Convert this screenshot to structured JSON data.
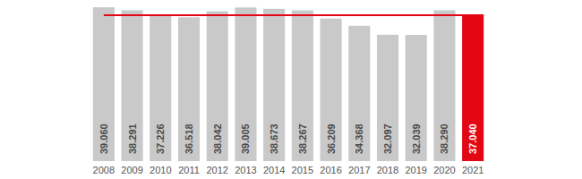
{
  "chart_data": {
    "type": "bar",
    "categories": [
      "2008",
      "2009",
      "2010",
      "2011",
      "2012",
      "2013",
      "2014",
      "2015",
      "2016",
      "2017",
      "2018",
      "2019",
      "2020",
      "2021"
    ],
    "values": [
      39.06,
      38.291,
      37.226,
      36.518,
      38.042,
      39.005,
      38.673,
      38.267,
      36.209,
      34.368,
      32.097,
      32.039,
      38.29,
      37.04
    ],
    "value_labels": [
      "39.060",
      "38.291",
      "37.226",
      "36.518",
      "38.042",
      "39.005",
      "38.673",
      "38.267",
      "36.209",
      "34.368",
      "32.097",
      "32.039",
      "38.290",
      "37.040"
    ],
    "colors": [
      "#c9c9c9",
      "#c9c9c9",
      "#c9c9c9",
      "#c9c9c9",
      "#c9c9c9",
      "#c9c9c9",
      "#c9c9c9",
      "#c9c9c9",
      "#c9c9c9",
      "#c9c9c9",
      "#c9c9c9",
      "#c9c9c9",
      "#c9c9c9",
      "#e30613"
    ],
    "reference_line": 37.04,
    "ylim": [
      0,
      40
    ],
    "grid": false,
    "data_labels": true,
    "tick_labels": "x"
  }
}
